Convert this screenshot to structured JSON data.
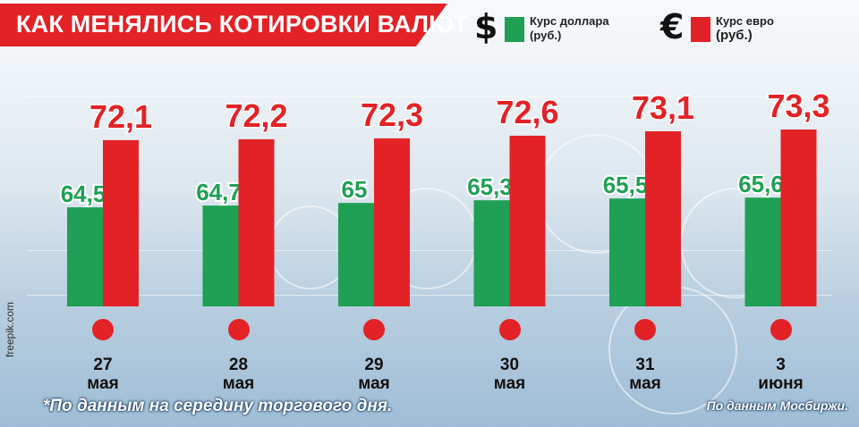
{
  "title": "КАК МЕНЯЛИСЬ КОТИРОВКИ ВАЛЮТ",
  "legend": [
    {
      "symbol": "$",
      "label_line1": "Курс доллара",
      "label_line2": "(руб.)",
      "color": "#1fa055"
    },
    {
      "symbol": "€",
      "label_line1": "Курс евро",
      "label_line2": "(руб.)",
      "color": "#e32227"
    }
  ],
  "chart_data": {
    "type": "bar",
    "title": "КАК МЕНЯЛИСЬ КОТИРОВКИ ВАЛЮТ",
    "categories": [
      "27 мая",
      "28 мая",
      "29 мая",
      "30 мая",
      "31 мая",
      "3 июня"
    ],
    "category_lines": [
      [
        "27",
        "мая"
      ],
      [
        "28",
        "мая"
      ],
      [
        "29",
        "мая"
      ],
      [
        "30",
        "мая"
      ],
      [
        "31",
        "мая"
      ],
      [
        "3",
        "июня"
      ]
    ],
    "series": [
      {
        "name": "Курс доллара (руб.)",
        "values": [
          64.5,
          64.7,
          65,
          65.3,
          65.5,
          65.6
        ],
        "labels": [
          "64,5",
          "64,7",
          "65",
          "65,3",
          "65,5",
          "65,6"
        ],
        "color": "#1fa055"
      },
      {
        "name": "Курс евро (руб.)",
        "values": [
          72.1,
          72.2,
          72.3,
          72.6,
          73.1,
          73.3
        ],
        "labels": [
          "72,1",
          "72,2",
          "72,3",
          "72,6",
          "73,1",
          "73,3"
        ],
        "color": "#e32227"
      }
    ],
    "grid": false,
    "legend_position": "top-right"
  },
  "footnote": "*По данным на середину торгового дня.",
  "source": "По данным Мосбиржи.",
  "credit": "freepik.com"
}
